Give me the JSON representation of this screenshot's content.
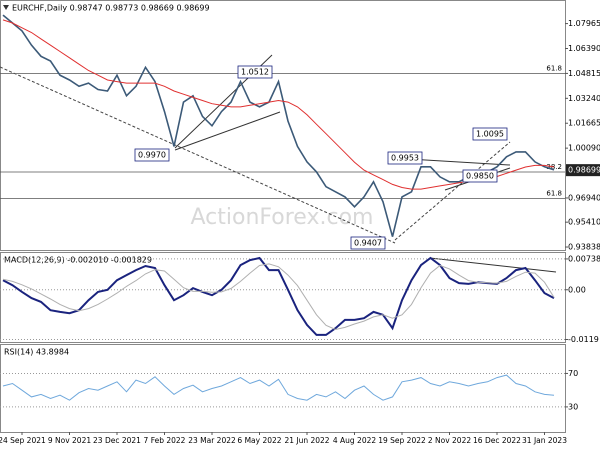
{
  "chart_data": [
    {
      "type": "line",
      "title": "EURCHF,Daily  0.98747 0.98773 0.98669 0.98699",
      "watermark": "ActionForex.com",
      "series": [
        {
          "color": "#3c5a78",
          "values": [
            1.085,
            1.08,
            1.075,
            1.066,
            1.059,
            1.056,
            1.047,
            1.044,
            1.04,
            1.042,
            1.038,
            1.037,
            1.047,
            1.034,
            1.04,
            1.052,
            1.043,
            1.024,
            1.002,
            1.03,
            1.034,
            1.021,
            1.015,
            1.024,
            1.03,
            1.043,
            1.03,
            1.027,
            1.03,
            1.043,
            1.018,
            1.002,
            0.9922,
            0.9859,
            0.9765,
            0.9733,
            0.9701,
            0.9638,
            0.9701,
            0.9796,
            0.967,
            0.9449,
            0.9701,
            0.9733,
            0.9891,
            0.9891,
            0.9827,
            0.9796,
            0.9796,
            0.9827,
            0.9859,
            0.9859,
            0.9891,
            0.9954,
            0.9985,
            0.9985,
            0.9922,
            0.9891,
            0.9872
          ]
        },
        {
          "color": "#e03030",
          "values": [
            1.082,
            1.08,
            1.077,
            1.074,
            1.07,
            1.066,
            1.062,
            1.058,
            1.054,
            1.05,
            1.047,
            1.044,
            1.043,
            1.042,
            1.042,
            1.042,
            1.042,
            1.04,
            1.037,
            1.035,
            1.033,
            1.031,
            1.029,
            1.028,
            1.027,
            1.027,
            1.028,
            1.029,
            1.03,
            1.031,
            1.03,
            1.027,
            1.022,
            1.016,
            1.01,
            1.004,
            0.998,
            0.992,
            0.987,
            0.984,
            0.981,
            0.978,
            0.976,
            0.975,
            0.975,
            0.976,
            0.977,
            0.978,
            0.979,
            0.98,
            0.981,
            0.982,
            0.983,
            0.985,
            0.987,
            0.989,
            0.99,
            0.99,
            0.989
          ]
        }
      ],
      "ylim": [
        0.9365,
        1.0933
      ],
      "yticks": [
        1.07965,
        {
          "value": 1.0639,
          "label": "1.06390"
        },
        1.04815,
        {
          "value": 1.0324,
          "label": "1.03240"
        },
        1.01665,
        {
          "value": 1.0009,
          "label": "1.00090"
        },
        {
          "value": 0.9694,
          "label": "0.96940"
        },
        {
          "value": 0.9541,
          "label": "0.95410"
        },
        0.93838
      ],
      "last_price": 0.98699,
      "levels": [
        {
          "value": 1.048,
          "label": "61.8"
        },
        {
          "value": 0.9858,
          "label": "38.2"
        },
        {
          "value": 0.969,
          "label": "61.8"
        }
      ],
      "annotations": [
        "1.0512",
        "0.9970",
        "0.9407",
        "0.9953",
        "1.0095",
        "0.9850"
      ]
    },
    {
      "type": "line",
      "title": "MACD(12,26,9) -0.002010 -0.001829",
      "series": [
        {
          "color": "#1a237e",
          "values": [
            0.0023,
            0.0011,
            -0.0005,
            -0.002,
            -0.0029,
            -0.0049,
            -0.0053,
            -0.0056,
            -0.0049,
            -0.0025,
            -0.0005,
            0.0,
            0.0023,
            0.0035,
            0.0047,
            0.0057,
            0.0052,
            0.0011,
            -0.0025,
            -0.0013,
            0.0004,
            -0.0005,
            -0.0013,
            0.0,
            0.0023,
            0.0059,
            0.0071,
            0.0076,
            0.0047,
            0.0047,
            0.0,
            -0.0049,
            -0.0084,
            -0.0108,
            -0.0108,
            -0.0092,
            -0.0072,
            -0.0072,
            -0.0068,
            -0.0053,
            -0.006,
            -0.0092,
            -0.0025,
            0.0023,
            0.0059,
            0.0076,
            0.0059,
            0.0028,
            0.0016,
            0.0014,
            0.0018,
            0.0016,
            0.0014,
            0.0028,
            0.0047,
            0.0052,
            0.0023,
            -0.0008,
            -0.002
          ]
        },
        {
          "color": "#b0b0b0",
          "values": [
            0.0025,
            0.002,
            0.0012,
            0.0002,
            -0.001,
            -0.0022,
            -0.0035,
            -0.0045,
            -0.005,
            -0.0045,
            -0.0035,
            -0.0022,
            -0.0008,
            0.0008,
            0.0022,
            0.0038,
            0.0048,
            0.0045,
            0.0025,
            0.0005,
            -0.0004,
            -0.0004,
            -0.0006,
            -0.0005,
            0.0003,
            0.002,
            0.004,
            0.0058,
            0.0062,
            0.0055,
            0.0035,
            0.001,
            -0.0025,
            -0.006,
            -0.0085,
            -0.0095,
            -0.009,
            -0.0082,
            -0.0075,
            -0.0065,
            -0.006,
            -0.0068,
            -0.006,
            -0.0035,
            0.0005,
            0.004,
            0.0058,
            0.005,
            0.0035,
            0.0022,
            0.0018,
            0.0017,
            0.0016,
            0.002,
            0.0032,
            0.0042,
            0.004,
            0.0018,
            -0.0018
          ]
        }
      ],
      "ylim": [
        -0.0125,
        0.0088
      ],
      "yticks": [
        0.00738,
        {
          "value": 0,
          "label": "0.00"
        },
        -0.0119
      ]
    },
    {
      "type": "line",
      "title": "RSI(14) 43.8984",
      "series": [
        {
          "color": "#6fa8dc",
          "values": [
            55,
            58,
            50,
            42,
            45,
            40,
            44,
            38,
            47,
            52,
            50,
            55,
            60,
            48,
            62,
            58,
            66,
            55,
            45,
            52,
            56,
            48,
            52,
            55,
            60,
            65,
            58,
            62,
            55,
            63,
            45,
            40,
            38,
            45,
            42,
            48,
            40,
            50,
            55,
            45,
            38,
            42,
            60,
            62,
            65,
            58,
            55,
            60,
            58,
            55,
            58,
            60,
            65,
            68,
            58,
            55,
            48,
            45,
            43.8984
          ]
        }
      ],
      "ylim": [
        0,
        104
      ],
      "yticks": [
        70,
        30
      ],
      "categories": [
        null,
        null,
        "24 Sep 2021",
        null,
        null,
        null,
        null,
        "9 Nov 2021",
        null,
        null,
        null,
        null,
        "23 Dec 2021",
        null,
        null,
        null,
        null,
        "7 Feb 2022",
        null,
        null,
        null,
        null,
        "23 Mar 2022",
        null,
        null,
        null,
        null,
        "6 May 2022",
        null,
        null,
        null,
        null,
        "21 Jun 2022",
        null,
        null,
        null,
        null,
        "4 Aug 2022",
        null,
        null,
        null,
        null,
        "19 Sep 2022",
        null,
        null,
        null,
        null,
        "2 Nov 2022",
        null,
        null,
        null,
        null,
        "16 Dec 2022",
        null,
        null,
        null,
        null,
        "31 Jan 2023",
        null
      ]
    }
  ]
}
